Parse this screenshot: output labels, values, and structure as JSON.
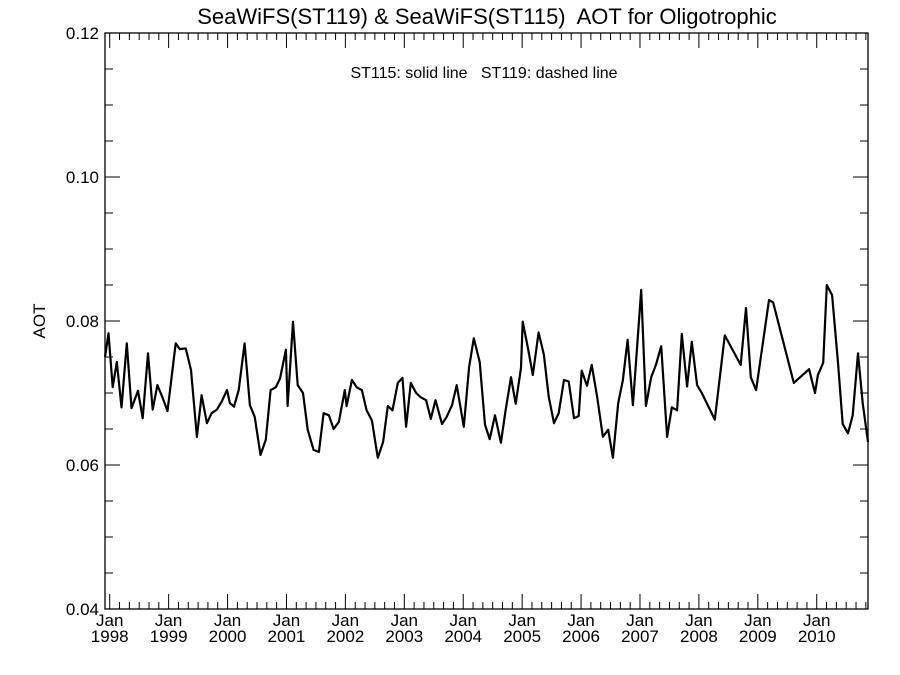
{
  "chart_data": {
    "type": "line",
    "title": "SeaWiFS(ST119) & SeaWiFS(ST115)  AOT for Oligotrophic",
    "annotation": "ST115: solid line   ST119: dashed line",
    "xlabel": "",
    "ylabel": "AOT",
    "xlim": [
      1997.92,
      2010.87
    ],
    "ylim": [
      0.04,
      0.12
    ],
    "yticks": [
      0.04,
      0.06,
      0.08,
      0.1,
      0.12
    ],
    "ytick_labels": [
      "0.04",
      "0.06",
      "0.08",
      "0.10",
      "0.12"
    ],
    "yminor_step": 0.005,
    "xticks": [
      {
        "value": 1998,
        "line1": "Jan",
        "line2": "1998"
      },
      {
        "value": 1999,
        "line1": "Jan",
        "line2": "1999"
      },
      {
        "value": 2000,
        "line1": "Jan",
        "line2": "2000"
      },
      {
        "value": 2001,
        "line1": "Jan",
        "line2": "2001"
      },
      {
        "value": 2002,
        "line1": "Jan",
        "line2": "2002"
      },
      {
        "value": 2003,
        "line1": "Jan",
        "line2": "2003"
      },
      {
        "value": 2004,
        "line1": "Jan",
        "line2": "2004"
      },
      {
        "value": 2005,
        "line1": "Jan",
        "line2": "2005"
      },
      {
        "value": 2006,
        "line1": "Jan",
        "line2": "2006"
      },
      {
        "value": 2007,
        "line1": "Jan",
        "line2": "2007"
      },
      {
        "value": 2008,
        "line1": "Jan",
        "line2": "2008"
      },
      {
        "value": 2009,
        "line1": "Jan",
        "line2": "2009"
      },
      {
        "value": 2010,
        "line1": "Jan",
        "line2": "2010"
      }
    ],
    "xminor_months": 2,
    "grid": false,
    "series": [
      {
        "name": "ST115",
        "style": "solid",
        "color": "#000000",
        "x": [
          1997.92,
          1997.98,
          1998.05,
          1998.12,
          1998.2,
          1998.29,
          1998.37,
          1998.48,
          1998.56,
          1998.65,
          1998.73,
          1998.81,
          1998.9,
          1998.98,
          1999.05,
          1999.12,
          1999.19,
          1999.29,
          1999.38,
          1999.48,
          1999.56,
          1999.65,
          1999.73,
          1999.82,
          1999.9,
          1999.99,
          2000.04,
          2000.11,
          2000.19,
          2000.29,
          2000.38,
          2000.46,
          2000.56,
          2000.65,
          2000.73,
          2000.82,
          2000.89,
          2000.99,
          2001.02,
          2001.11,
          2001.19,
          2001.28,
          2001.36,
          2001.46,
          2001.55,
          2001.63,
          2001.72,
          2001.8,
          2001.89,
          2001.99,
          2002.02,
          2002.11,
          2002.19,
          2002.28,
          2002.36,
          2002.45,
          2002.55,
          2002.64,
          2002.72,
          2002.8,
          2002.89,
          2002.97,
          2003.03,
          2003.11,
          2003.2,
          2003.28,
          2003.37,
          2003.45,
          2003.53,
          2003.64,
          2003.72,
          2003.81,
          2003.89,
          2004.01,
          2004.1,
          2004.18,
          2004.28,
          2004.37,
          2004.45,
          2004.54,
          2004.64,
          2004.72,
          2004.81,
          2004.89,
          2004.98,
          2005.01,
          2005.1,
          2005.18,
          2005.28,
          2005.37,
          2005.45,
          2005.54,
          2005.62,
          2005.71,
          2005.79,
          2005.88,
          2005.96,
          2006.01,
          2006.1,
          2006.18,
          2006.27,
          2006.37,
          2006.46,
          2006.54,
          2006.63,
          2006.71,
          2006.79,
          2006.88,
          2007.02,
          2007.1,
          2007.19,
          2007.27,
          2007.36,
          2007.46,
          2007.54,
          2007.63,
          2007.71,
          2007.8,
          2007.88,
          2007.97,
          2008.05,
          2008.27,
          2008.44,
          2008.71,
          2008.8,
          2008.88,
          2008.97,
          2009.19,
          2009.26,
          2009.61,
          2009.87,
          2009.97,
          2010.02,
          2010.11,
          2010.17,
          2010.26,
          2010.36,
          2010.44,
          2010.53,
          2010.61,
          2010.7,
          2010.78,
          2010.87
        ],
        "y": [
          0.075,
          0.0783,
          0.0708,
          0.0743,
          0.068,
          0.0769,
          0.0679,
          0.0703,
          0.0665,
          0.0755,
          0.0677,
          0.0711,
          0.0693,
          0.0675,
          0.0722,
          0.0769,
          0.0761,
          0.0762,
          0.0732,
          0.0639,
          0.0697,
          0.0658,
          0.0672,
          0.0677,
          0.0688,
          0.0704,
          0.0686,
          0.0681,
          0.0704,
          0.0769,
          0.0683,
          0.0667,
          0.0614,
          0.0635,
          0.0704,
          0.0708,
          0.072,
          0.076,
          0.0682,
          0.0799,
          0.0711,
          0.07,
          0.0649,
          0.0621,
          0.0618,
          0.0672,
          0.0669,
          0.065,
          0.066,
          0.0704,
          0.0682,
          0.0718,
          0.0708,
          0.0704,
          0.0676,
          0.0662,
          0.061,
          0.0632,
          0.0682,
          0.0676,
          0.0714,
          0.0721,
          0.0653,
          0.0714,
          0.07,
          0.0694,
          0.069,
          0.0664,
          0.069,
          0.0657,
          0.0667,
          0.0683,
          0.0711,
          0.0653,
          0.0736,
          0.0776,
          0.0743,
          0.0656,
          0.0636,
          0.0669,
          0.0631,
          0.0676,
          0.0722,
          0.0685,
          0.0735,
          0.0799,
          0.0762,
          0.0725,
          0.0784,
          0.0753,
          0.0695,
          0.0658,
          0.0672,
          0.0718,
          0.0716,
          0.0665,
          0.0668,
          0.0731,
          0.071,
          0.0739,
          0.0696,
          0.0639,
          0.0649,
          0.061,
          0.0686,
          0.0718,
          0.0774,
          0.0683,
          0.0843,
          0.0682,
          0.0722,
          0.0739,
          0.0765,
          0.0639,
          0.068,
          0.0676,
          0.0782,
          0.0709,
          0.0771,
          0.0711,
          0.07,
          0.0663,
          0.078,
          0.0739,
          0.0818,
          0.0722,
          0.0704,
          0.0829,
          0.0826,
          0.0714,
          0.0733,
          0.07,
          0.0725,
          0.0742,
          0.085,
          0.0836,
          0.0742,
          0.0657,
          0.0644,
          0.0669,
          0.0755,
          0.0686,
          0.0632
        ]
      }
    ]
  }
}
